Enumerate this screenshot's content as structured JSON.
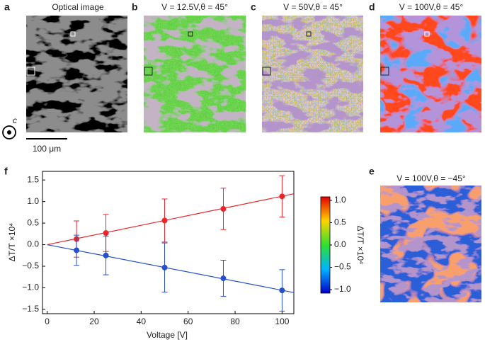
{
  "panels": {
    "a": {
      "letter": "a",
      "title": "Optical image",
      "scale_bar": "100 μm",
      "axis": "c"
    },
    "b": {
      "letter": "b",
      "title": "V = 12.5V,θ = 45°"
    },
    "c": {
      "letter": "c",
      "title": "V = 50V,θ = 45°"
    },
    "d": {
      "letter": "d",
      "title": "V = 100V,θ = 45°"
    },
    "e": {
      "letter": "e",
      "title": "V = 100V,θ = −45°"
    },
    "f": {
      "letter": "f"
    }
  },
  "colorbar": {
    "label": "ΔT/T ×10⁴",
    "lim": [
      -1.08,
      1.08
    ],
    "ticks": [
      {
        "value": 1,
        "label": "1.0"
      },
      0.5,
      {
        "value": 0,
        "label": "0.0"
      },
      {
        "value": -0.5,
        "label": "−0.5"
      },
      {
        "value": -1,
        "label": "−1.0"
      }
    ]
  },
  "chart_data": {
    "type": "scatter",
    "xlabel": "Voltage [V]",
    "ylabel": "ΔT/T ×10⁴",
    "xlim": [
      -2,
      105
    ],
    "xticks": [
      0,
      20,
      40,
      60,
      80,
      100
    ],
    "ylim": [
      -1.6,
      1.7
    ],
    "yticks": [
      1.5,
      {
        "value": 1,
        "label": "1.0"
      },
      0.5,
      {
        "value": 0,
        "label": "0.0"
      },
      {
        "value": -0.5,
        "label": "−0.5"
      },
      {
        "value": -1,
        "label": "−1.0"
      },
      {
        "value": -1.5,
        "label": "−1.5"
      }
    ],
    "series": [
      {
        "color": "#e8262b",
        "x": [
          12.5,
          25,
          50,
          75,
          100
        ],
        "values": [
          0.13,
          0.27,
          0.56,
          0.83,
          1.12
        ],
        "errors": [
          0.42,
          0.43,
          0.5,
          0.48,
          0.48
        ],
        "fit": {
          "x": [
            0,
            105
          ],
          "values": [
            0,
            1.18
          ]
        }
      },
      {
        "color": "#2750c9",
        "x": [
          12.5,
          25,
          50,
          75,
          100
        ],
        "values": [
          -0.13,
          -0.25,
          -0.53,
          -0.78,
          -1.06
        ],
        "errors": [
          0.35,
          0.45,
          0.57,
          0.42,
          0.48
        ],
        "fit": {
          "x": [
            0,
            105
          ],
          "values": [
            0,
            -1.11
          ]
        }
      }
    ]
  }
}
